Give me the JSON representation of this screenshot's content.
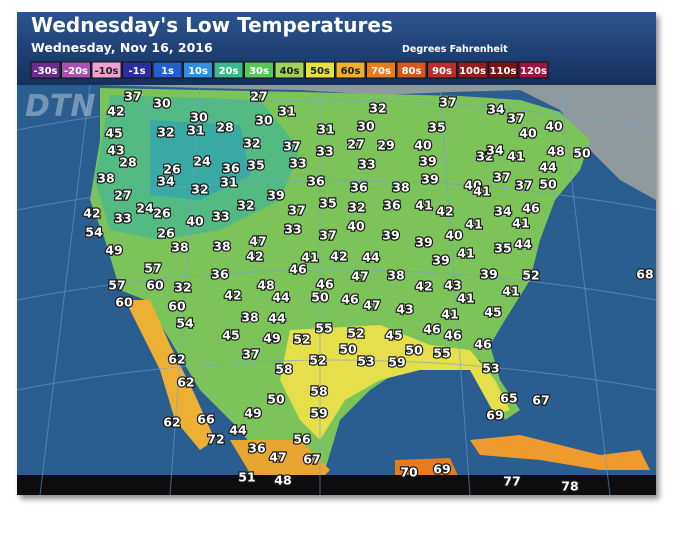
{
  "header": {
    "title": "Wednesday's Low Temperatures",
    "subtitle": "Wednesday, Nov 16, 2016",
    "units": "Degrees Fahrenheit"
  },
  "watermark": "DTN",
  "legend": [
    {
      "label": "-30s",
      "color": "#6b2c8c"
    },
    {
      "label": "-20s",
      "color": "#a953b0"
    },
    {
      "label": "-10s",
      "color": "#efa2d2"
    },
    {
      "label": "-1s",
      "color": "#2b2f9e"
    },
    {
      "label": "1s",
      "color": "#245fcf"
    },
    {
      "label": "10s",
      "color": "#2f8fe0"
    },
    {
      "label": "20s",
      "color": "#3ab98c"
    },
    {
      "label": "30s",
      "color": "#58c75a"
    },
    {
      "label": "40s",
      "color": "#9dd35b"
    },
    {
      "label": "50s",
      "color": "#e6df48"
    },
    {
      "label": "60s",
      "color": "#efb02e"
    },
    {
      "label": "70s",
      "color": "#e67c1f"
    },
    {
      "label": "80s",
      "color": "#d6581f"
    },
    {
      "label": "90s",
      "color": "#b62f2a"
    },
    {
      "label": "100s",
      "color": "#981a1b"
    },
    {
      "label": "110s",
      "color": "#7a1212"
    },
    {
      "label": "120s",
      "color": "#a0123f"
    }
  ],
  "temperatures": [
    37,
    30,
    27,
    31,
    32,
    37,
    34,
    42,
    45,
    30,
    32,
    31,
    28,
    30,
    31,
    30,
    35,
    37,
    40,
    40,
    43,
    32,
    37,
    33,
    27,
    29,
    40,
    24,
    36,
    35,
    33,
    33,
    39,
    32,
    34,
    41,
    48,
    50,
    28,
    26,
    44,
    38,
    34,
    31,
    36,
    36,
    38,
    39,
    37,
    40,
    41,
    37,
    50,
    32,
    39,
    27,
    24,
    26,
    40,
    33,
    32,
    37,
    35,
    32,
    36,
    41,
    42,
    34,
    46,
    42,
    33,
    41,
    54,
    26,
    38,
    38,
    47,
    33,
    37,
    40,
    39,
    39,
    40,
    41,
    35,
    44,
    49,
    42,
    41,
    42,
    44,
    39,
    41,
    57,
    36,
    46,
    47,
    38,
    42,
    43,
    39,
    52,
    68,
    57,
    60,
    32,
    48,
    46,
    60,
    42,
    44,
    50,
    46,
    47,
    43,
    41,
    41,
    60,
    54,
    38,
    44,
    55,
    52,
    45,
    46,
    41,
    45,
    45,
    49,
    52,
    46,
    50,
    59,
    53,
    50,
    55,
    46,
    62,
    37,
    52,
    58,
    53,
    62,
    58,
    65,
    67,
    50,
    49,
    59,
    69,
    62,
    66,
    44,
    72,
    56,
    36,
    47,
    67,
    51,
    48,
    70,
    69,
    77,
    78
  ]
}
